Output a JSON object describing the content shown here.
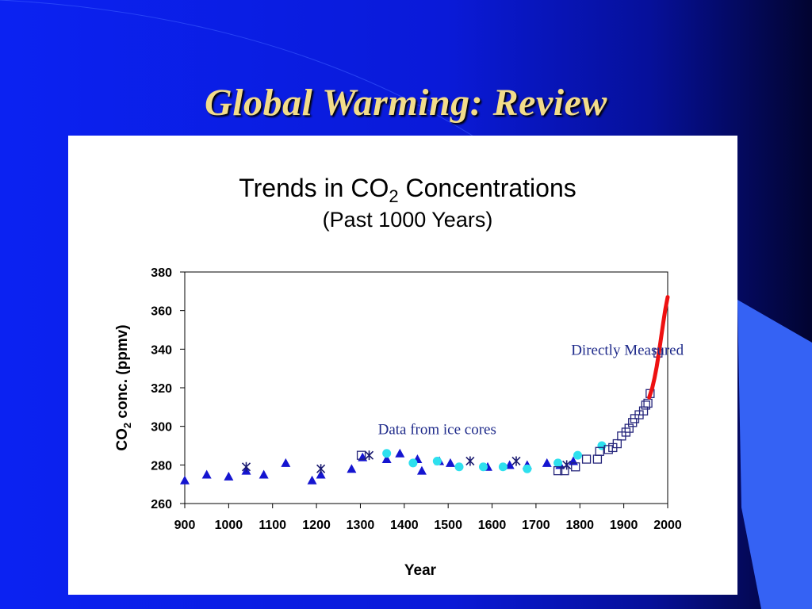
{
  "slide": {
    "title": "Global Warming:  Review",
    "colors": {
      "background": "#0b20f0",
      "title": "#f2dc8a",
      "panel": "#ffffff"
    }
  },
  "chart_data": {
    "type": "scatter",
    "title": "Trends in CO",
    "title_subscript": "2",
    "title_suffix": " Concentrations",
    "subtitle": "(Past 1000 Years)",
    "xlabel": "Year",
    "ylabel_prefix": "CO",
    "ylabel_subscript": "2",
    "ylabel_suffix": " conc. (ppmv)",
    "xlim": [
      900,
      2000
    ],
    "ylim": [
      260,
      380
    ],
    "x_ticks": [
      900,
      1000,
      1100,
      1200,
      1300,
      1400,
      1500,
      1600,
      1700,
      1800,
      1900,
      2000
    ],
    "y_ticks": [
      260,
      280,
      300,
      320,
      340,
      360,
      380
    ],
    "grid": false,
    "annotations": [
      {
        "text": "Data from ice cores",
        "x": 1340,
        "y": 296
      },
      {
        "text": "Directly Measured",
        "x": 1780,
        "y": 337
      }
    ],
    "series": [
      {
        "marker": "triangle",
        "color": "#1515d0",
        "points": [
          [
            900,
            272
          ],
          [
            950,
            275
          ],
          [
            1000,
            274
          ],
          [
            1040,
            277
          ],
          [
            1080,
            275
          ],
          [
            1130,
            281
          ],
          [
            1190,
            272
          ],
          [
            1210,
            275
          ],
          [
            1280,
            278
          ],
          [
            1305,
            284
          ],
          [
            1360,
            283
          ],
          [
            1390,
            286
          ],
          [
            1430,
            283
          ],
          [
            1440,
            277
          ],
          [
            1480,
            282
          ],
          [
            1505,
            281
          ],
          [
            1590,
            279
          ],
          [
            1640,
            280
          ],
          [
            1680,
            280
          ],
          [
            1725,
            281
          ],
          [
            1755,
            280
          ],
          [
            1785,
            282
          ]
        ]
      },
      {
        "marker": "star",
        "color": "#1a1a70",
        "points": [
          [
            1040,
            279
          ],
          [
            1210,
            278
          ],
          [
            1320,
            285
          ],
          [
            1550,
            282
          ],
          [
            1655,
            282
          ],
          [
            1770,
            280
          ]
        ]
      },
      {
        "marker": "circle",
        "color": "#2ee0ee",
        "points": [
          [
            1360,
            286
          ],
          [
            1420,
            281
          ],
          [
            1475,
            282
          ],
          [
            1525,
            279
          ],
          [
            1580,
            279
          ],
          [
            1625,
            279
          ],
          [
            1680,
            278
          ],
          [
            1750,
            281
          ],
          [
            1795,
            285
          ],
          [
            1850,
            290
          ]
        ]
      },
      {
        "marker": "square",
        "color": "#24247a",
        "points": [
          [
            1302,
            285
          ],
          [
            1750,
            277
          ],
          [
            1765,
            277
          ],
          [
            1790,
            279
          ],
          [
            1815,
            283
          ],
          [
            1840,
            283
          ],
          [
            1845,
            287
          ],
          [
            1865,
            288
          ],
          [
            1875,
            289
          ],
          [
            1885,
            291
          ],
          [
            1895,
            295
          ],
          [
            1905,
            297
          ],
          [
            1912,
            299
          ],
          [
            1920,
            302
          ],
          [
            1925,
            304
          ],
          [
            1935,
            306
          ],
          [
            1945,
            308
          ],
          [
            1950,
            311
          ],
          [
            1955,
            312
          ],
          [
            1960,
            317
          ],
          [
            1978,
            338
          ]
        ]
      },
      {
        "type": "line",
        "color": "#ee1111",
        "points": [
          [
            1958,
            315
          ],
          [
            1965,
            320
          ],
          [
            1970,
            325
          ],
          [
            1975,
            331
          ],
          [
            1980,
            338
          ],
          [
            1985,
            346
          ],
          [
            1990,
            354
          ],
          [
            1995,
            361
          ],
          [
            2000,
            367
          ]
        ]
      }
    ]
  }
}
